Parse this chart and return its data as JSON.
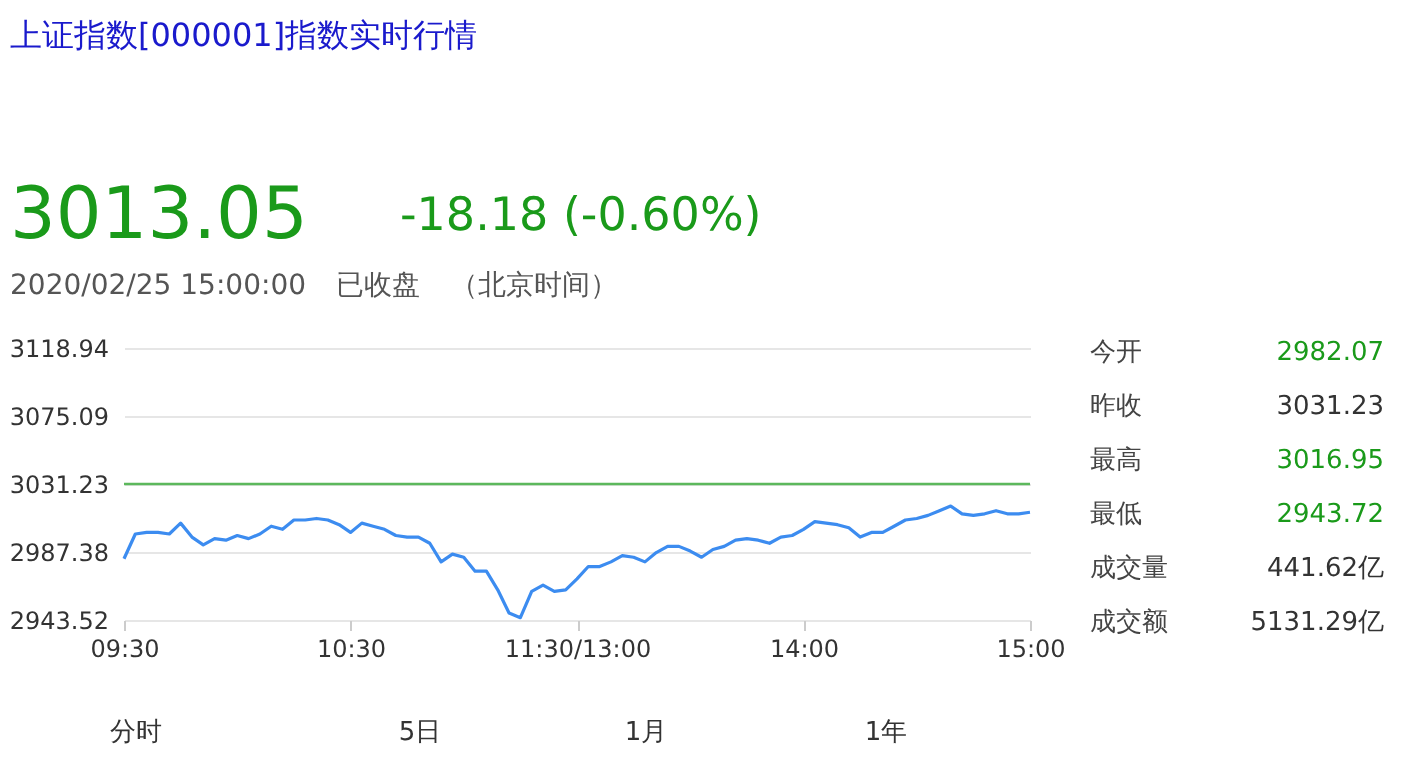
{
  "chart_data": {
    "type": "line",
    "title": "上证指数[000001]指数实时行情",
    "categories": [
      "09:30",
      null,
      null,
      null,
      null,
      null,
      null,
      null,
      null,
      null,
      null,
      null,
      null,
      null,
      null,
      null,
      null,
      null,
      null,
      null,
      "10:30",
      null,
      null,
      null,
      null,
      null,
      null,
      null,
      null,
      null,
      null,
      null,
      null,
      null,
      null,
      null,
      null,
      null,
      null,
      null,
      "11:30/13:00",
      null,
      null,
      null,
      null,
      null,
      null,
      null,
      null,
      null,
      null,
      null,
      null,
      null,
      null,
      null,
      null,
      null,
      null,
      null,
      "14:00",
      null,
      null,
      null,
      null,
      null,
      null,
      null,
      null,
      null,
      null,
      null,
      null,
      null,
      null,
      null,
      null,
      null,
      null,
      null,
      "15:00"
    ],
    "series": [
      {
        "color": "#3c8cf0",
        "values": [
          2983,
          2999,
          3000,
          3000,
          2999,
          3006,
          2997,
          2992,
          2996,
          2995,
          2998,
          2996,
          2999,
          3004,
          3002,
          3008,
          3008,
          3009,
          3008,
          3005,
          3000,
          3006,
          3004,
          3002,
          2998,
          2997,
          2997,
          2993,
          2981,
          2986,
          2984,
          2975,
          2975,
          2963,
          2948,
          2945,
          2962,
          2966,
          2962,
          2963,
          2970,
          2978,
          2978,
          2981,
          2985,
          2984,
          2981,
          2987,
          2991,
          2991,
          2988,
          2984,
          2989,
          2991,
          2995,
          2996,
          2995,
          2993,
          2997,
          2998,
          3002,
          3007,
          3006,
          3005,
          3003,
          2997,
          3000,
          3000,
          3004,
          3008,
          3009,
          3011,
          3014,
          3017,
          3012,
          3011,
          3012,
          3014,
          3012,
          3012,
          3013
        ]
      }
    ],
    "ylim": [
      2943.52,
      3118.94
    ],
    "yticks": [
      2943.52,
      2987.38,
      3031.23,
      3075.09,
      3118.94
    ],
    "ref_lines": [
      {
        "axis": "y",
        "value": 3031.23,
        "color": "#5cb85c"
      }
    ],
    "grid": "y",
    "marker": "none",
    "line_style": "solid",
    "annotations": [
      "3013.05",
      "-18.18 (-0.60%)",
      "2020/02/25 15:00:00",
      "已收盘",
      "（北京时间）",
      "今开",
      "2982.07",
      "昨收",
      "3031.23",
      "最高",
      "3016.95",
      "最低",
      "2943.72",
      "成交量",
      "441.62亿",
      "成交额",
      "5131.29亿",
      "分时",
      "5日",
      "1月",
      "1年"
    ]
  }
}
